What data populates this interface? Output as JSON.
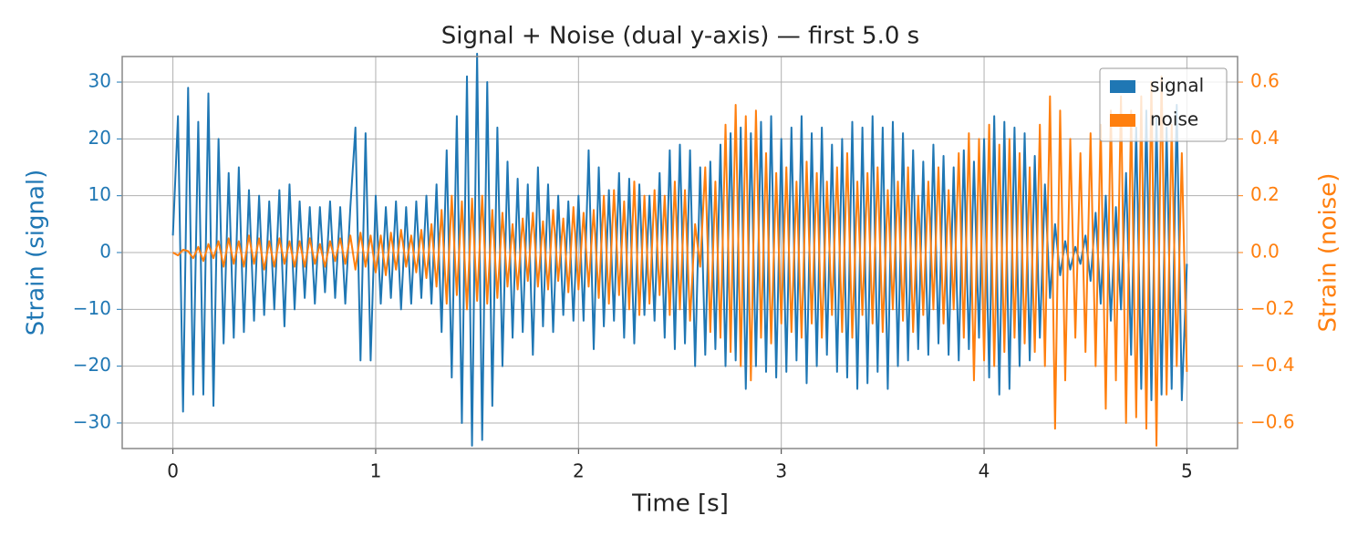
{
  "chart_data": {
    "type": "line",
    "title": "Signal + Noise (dual y-axis) — first 5.0 s",
    "xlabel": "Time [s]",
    "ylabel": "Strain (signal)",
    "y2label": "Strain (noise)",
    "xlim": [
      -0.25,
      5.25
    ],
    "xticks": [
      0,
      1,
      2,
      3,
      4,
      5
    ],
    "ylim": [
      -34.5,
      34.5
    ],
    "yticks": [
      {
        "value": -30,
        "label": "−30"
      },
      {
        "value": -20,
        "label": "−20"
      },
      {
        "value": -10,
        "label": "−10"
      },
      0,
      10,
      20,
      30
    ],
    "y2lim": [
      -0.69,
      0.69
    ],
    "y2ticks": [
      {
        "value": -0.6,
        "label": "−0.6"
      },
      {
        "value": -0.4,
        "label": "−0.4"
      },
      {
        "value": -0.2,
        "label": "−0.2"
      },
      {
        "value": 0,
        "label": "0.0"
      },
      0.2,
      0.4,
      0.6
    ],
    "grid": true,
    "legend": "upper right",
    "x": [
      0,
      0.025,
      0.05,
      0.075,
      0.1,
      0.125,
      0.15,
      0.175,
      0.2,
      0.225,
      0.25,
      0.275,
      0.3,
      0.325,
      0.35,
      0.375,
      0.4,
      0.425,
      0.45,
      0.475,
      0.5,
      0.525,
      0.55,
      0.575,
      0.6,
      0.625,
      0.65,
      0.675,
      0.7,
      0.725,
      0.75,
      0.775,
      0.8,
      0.825,
      0.85,
      0.875,
      0.9,
      0.925,
      0.95,
      0.975,
      1,
      1.025,
      1.05,
      1.075,
      1.1,
      1.125,
      1.15,
      1.175,
      1.2,
      1.225,
      1.25,
      1.275,
      1.3,
      1.325,
      1.35,
      1.375,
      1.4,
      1.425,
      1.45,
      1.475,
      1.5,
      1.525,
      1.55,
      1.575,
      1.6,
      1.625,
      1.65,
      1.675,
      1.7,
      1.725,
      1.75,
      1.775,
      1.8,
      1.825,
      1.85,
      1.875,
      1.9,
      1.925,
      1.95,
      1.975,
      2,
      2.025,
      2.05,
      2.075,
      2.1,
      2.125,
      2.15,
      2.175,
      2.2,
      2.225,
      2.25,
      2.275,
      2.3,
      2.325,
      2.35,
      2.375,
      2.4,
      2.425,
      2.45,
      2.475,
      2.5,
      2.525,
      2.55,
      2.575,
      2.6,
      2.625,
      2.65,
      2.675,
      2.7,
      2.725,
      2.75,
      2.775,
      2.8,
      2.825,
      2.85,
      2.875,
      2.9,
      2.925,
      2.95,
      2.975,
      3,
      3.025,
      3.05,
      3.075,
      3.1,
      3.125,
      3.15,
      3.175,
      3.2,
      3.225,
      3.25,
      3.275,
      3.3,
      3.325,
      3.35,
      3.375,
      3.4,
      3.425,
      3.45,
      3.475,
      3.5,
      3.525,
      3.55,
      3.575,
      3.6,
      3.625,
      3.65,
      3.675,
      3.7,
      3.725,
      3.75,
      3.775,
      3.8,
      3.825,
      3.85,
      3.875,
      3.9,
      3.925,
      3.95,
      3.975,
      4,
      4.025,
      4.05,
      4.075,
      4.1,
      4.125,
      4.15,
      4.175,
      4.2,
      4.225,
      4.25,
      4.275,
      4.3,
      4.325,
      4.35,
      4.375,
      4.4,
      4.425,
      4.45,
      4.475,
      4.5,
      4.525,
      4.55,
      4.575,
      4.6,
      4.625,
      4.65,
      4.675,
      4.7,
      4.725,
      4.75,
      4.775,
      4.8,
      4.825,
      4.85,
      4.875,
      4.9,
      4.925,
      4.95,
      4.975,
      5
    ],
    "series": [
      {
        "name": "signal",
        "color": "#1f77b4",
        "axis": "y",
        "values": [
          3,
          24,
          -28,
          29,
          -25,
          23,
          -25,
          28,
          -27,
          20,
          -16,
          14,
          -15,
          15,
          -14,
          11,
          -12,
          10,
          -11,
          9,
          -10,
          11,
          -13,
          12,
          -10,
          9,
          -8,
          8,
          -9,
          8,
          -7,
          9,
          -8,
          8,
          -9,
          8,
          22,
          -19,
          21,
          -19,
          10,
          -9,
          8,
          -8,
          9,
          -10,
          8,
          -9,
          9,
          -8,
          10,
          -9,
          12,
          -14,
          18,
          -22,
          24,
          -30,
          31,
          -34,
          35,
          -33,
          30,
          -27,
          22,
          -20,
          16,
          -15,
          13,
          -14,
          12,
          -18,
          15,
          -13,
          12,
          -14,
          10,
          -11,
          9,
          -12,
          10,
          -12,
          18,
          -17,
          15,
          -13,
          11,
          -12,
          14,
          -15,
          13,
          -16,
          12,
          -11,
          10,
          -12,
          14,
          -15,
          18,
          -17,
          19,
          -16,
          18,
          -20,
          15,
          -18,
          16,
          -17,
          19,
          -20,
          21,
          -19,
          22,
          -24,
          21,
          -20,
          23,
          -21,
          24,
          -22,
          20,
          -21,
          22,
          -19,
          24,
          -23,
          21,
          -20,
          22,
          -18,
          19,
          -21,
          20,
          -22,
          23,
          -24,
          22,
          -23,
          24,
          -21,
          22,
          -24,
          23,
          -20,
          21,
          -19,
          18,
          -17,
          16,
          -18,
          19,
          -16,
          17,
          -18,
          15,
          -19,
          18,
          -17,
          16,
          -15,
          20,
          -22,
          24,
          -25,
          23,
          -24,
          22,
          -20,
          21,
          -19,
          17,
          -15,
          12,
          -8,
          5,
          -4,
          2,
          -3,
          1,
          -2,
          3,
          -5,
          7,
          -9,
          10,
          -12,
          8,
          -10,
          14,
          -18,
          22,
          -24,
          25,
          -26,
          24,
          -25,
          22,
          -24,
          26,
          -26,
          -2
        ]
      },
      {
        "name": "noise",
        "color": "#ff7f0e",
        "axis": "y2",
        "values": [
          0,
          -0.01,
          0.01,
          0.005,
          -0.02,
          0.02,
          -0.03,
          0.03,
          -0.02,
          0.04,
          -0.05,
          0.05,
          -0.04,
          0.04,
          -0.05,
          0.06,
          -0.04,
          0.05,
          -0.06,
          0.04,
          -0.05,
          0.05,
          -0.04,
          0.04,
          -0.05,
          0.04,
          -0.05,
          0.05,
          -0.04,
          0.03,
          -0.05,
          0.04,
          -0.03,
          0.05,
          -0.04,
          0.06,
          -0.06,
          0.07,
          -0.05,
          0.06,
          -0.07,
          0.06,
          -0.08,
          0.07,
          -0.06,
          0.08,
          -0.05,
          0.06,
          -0.07,
          0.08,
          -0.09,
          0.1,
          -0.12,
          0.15,
          -0.18,
          0.2,
          -0.15,
          0.18,
          -0.2,
          0.19,
          -0.17,
          0.2,
          -0.18,
          0.15,
          -0.16,
          0.14,
          -0.12,
          0.1,
          -0.13,
          0.12,
          -0.1,
          0.14,
          -0.12,
          0.11,
          -0.13,
          0.15,
          -0.1,
          0.12,
          -0.14,
          0.16,
          -0.13,
          0.14,
          -0.12,
          0.15,
          -0.16,
          0.2,
          -0.18,
          0.22,
          -0.15,
          0.18,
          -0.2,
          0.25,
          -0.22,
          0.2,
          -0.18,
          0.22,
          -0.15,
          0.2,
          -0.22,
          0.25,
          -0.2,
          0.22,
          -0.24,
          0.1,
          -0.05,
          0.3,
          -0.28,
          0.25,
          -0.3,
          0.45,
          -0.35,
          0.52,
          -0.4,
          0.48,
          -0.45,
          0.5,
          -0.3,
          0.35,
          -0.32,
          0.28,
          -0.25,
          0.3,
          -0.28,
          0.25,
          -0.3,
          0.32,
          -0.25,
          0.28,
          -0.3,
          0.25,
          -0.22,
          0.3,
          -0.28,
          0.35,
          -0.3,
          0.25,
          -0.22,
          0.28,
          -0.25,
          0.3,
          -0.28,
          0.22,
          -0.2,
          0.25,
          -0.24,
          0.3,
          -0.28,
          0.2,
          -0.22,
          0.25,
          -0.2,
          0.3,
          -0.25,
          0.22,
          -0.2,
          0.35,
          -0.3,
          0.42,
          -0.45,
          0.4,
          -0.38,
          0.45,
          -0.4,
          0.38,
          -0.35,
          0.4,
          -0.3,
          0.35,
          -0.32,
          0.3,
          -0.35,
          0.45,
          -0.4,
          0.55,
          -0.62,
          0.5,
          -0.45,
          0.4,
          -0.3,
          0.35,
          -0.35,
          0.42,
          -0.4,
          0.45,
          -0.55,
          0.5,
          -0.45,
          0.55,
          -0.6,
          0.5,
          -0.58,
          0.55,
          -0.62,
          0.6,
          -0.68,
          0.62,
          -0.5,
          0.45,
          -0.4,
          0.35,
          -0.42
        ]
      }
    ]
  }
}
